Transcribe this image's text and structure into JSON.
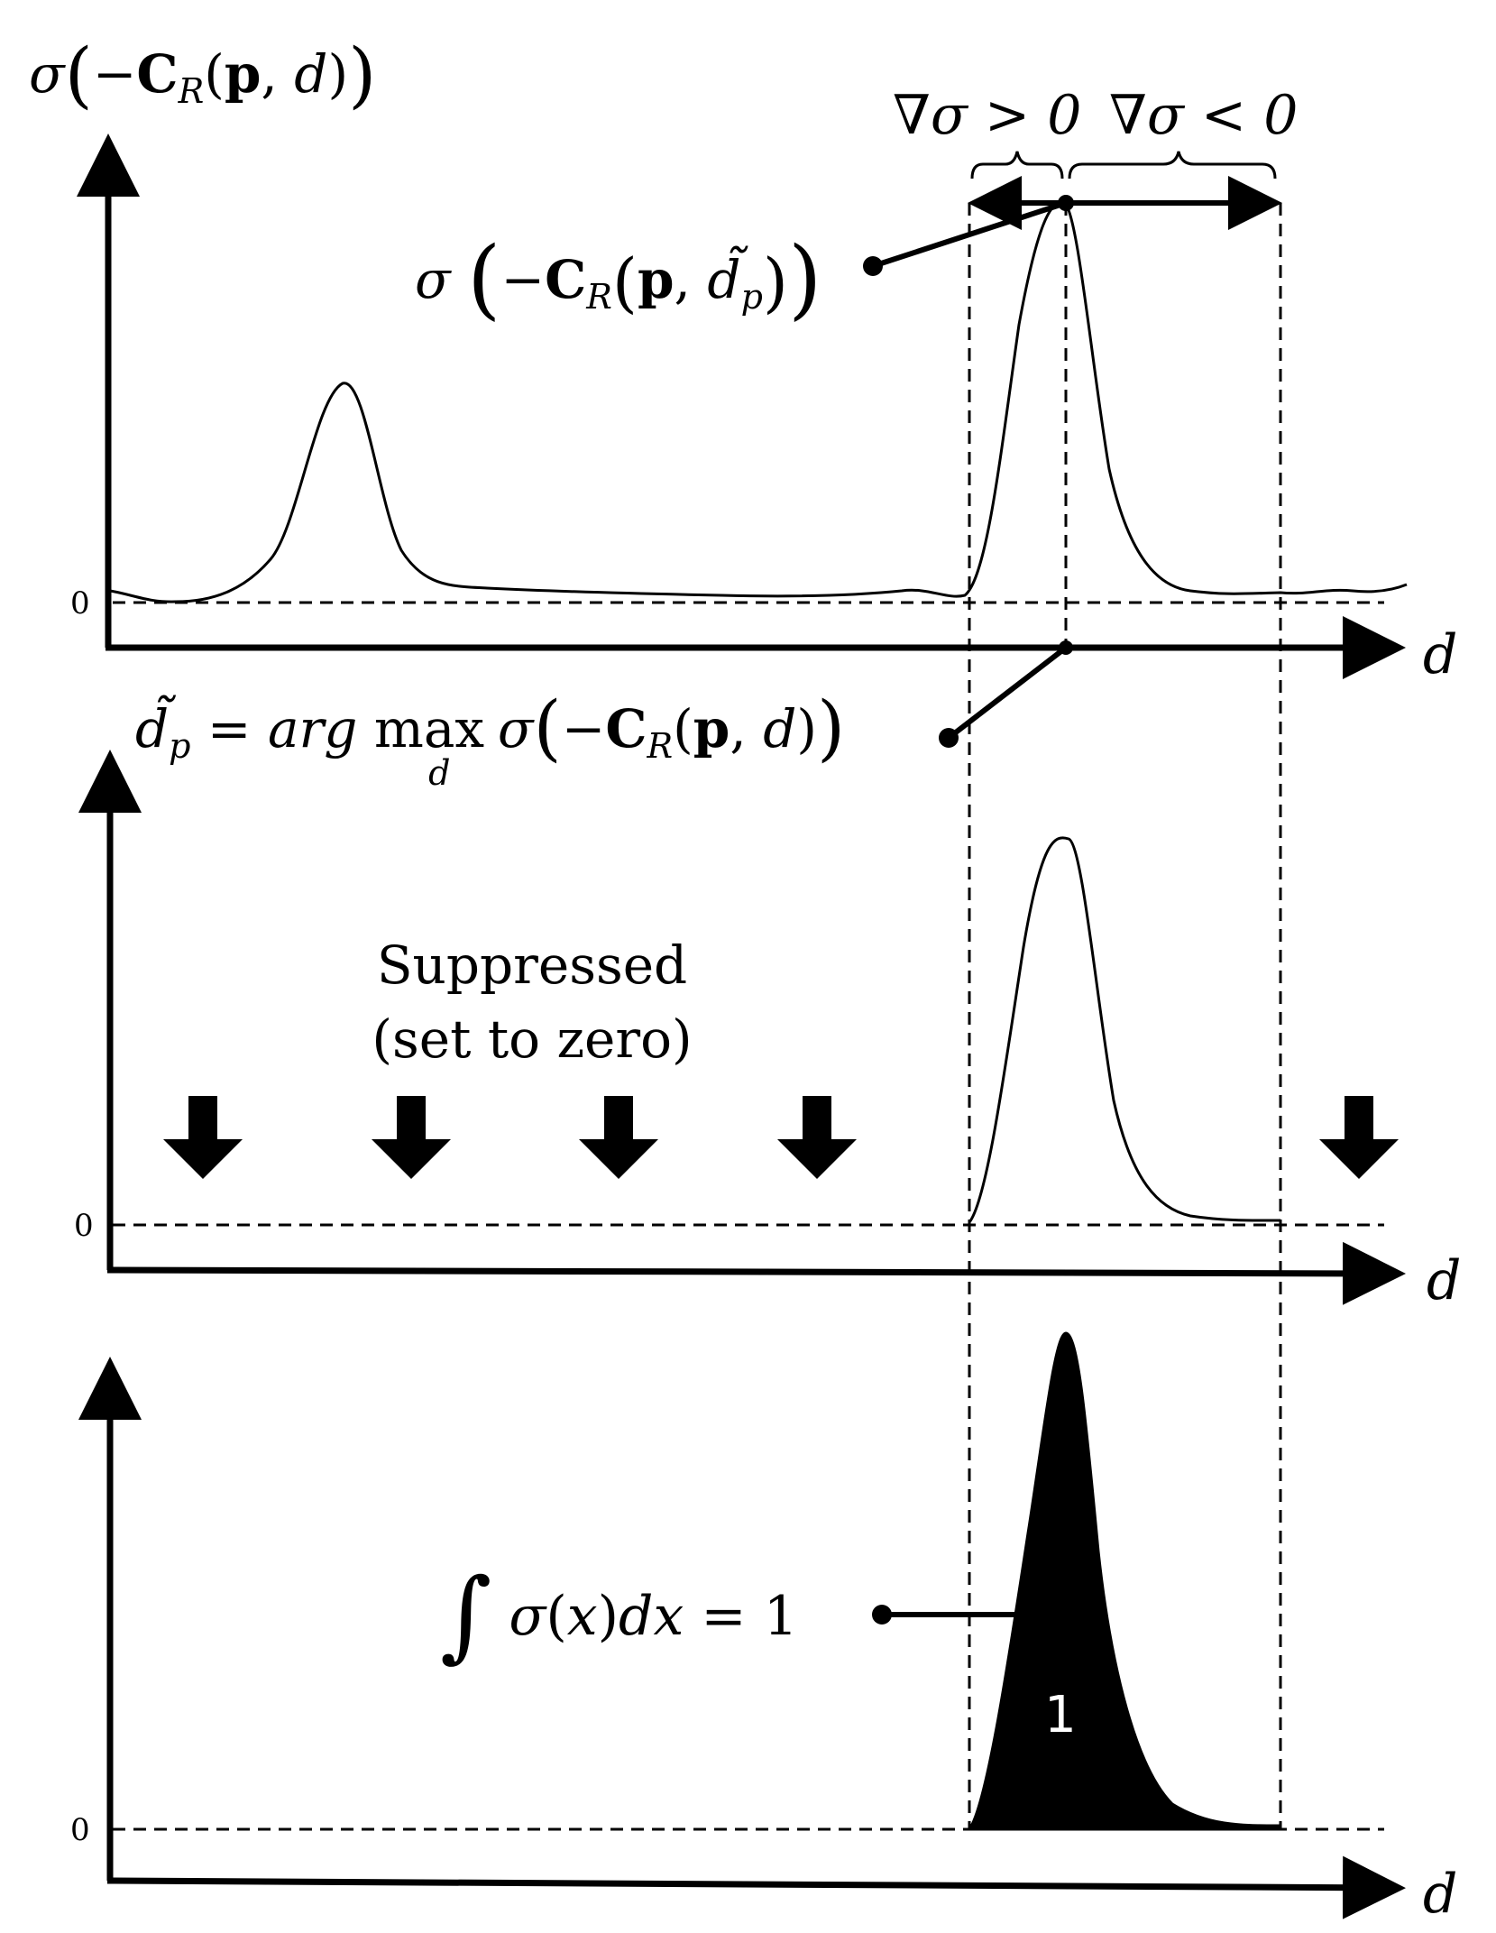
{
  "top_panel": {
    "y_axis_label": "σ(−C_R(p, d))",
    "zero_label": "0",
    "x_axis_label": "d",
    "grad_pos_label": "∇σ > 0",
    "grad_neg_label": "∇σ < 0",
    "peak_callout": "σ(−C_R(p, d̃_p))"
  },
  "argmax_callout": "d̃_p = arg max_d σ(−C_R(p, d))",
  "middle_panel": {
    "zero_label": "0",
    "x_axis_label": "d",
    "suppressed_line1": "Suppressed",
    "suppressed_line2": "(set to zero)"
  },
  "bottom_panel": {
    "zero_label": "0",
    "x_axis_label": "d",
    "integral_callout": "∫ σ(x)dx = 1",
    "area_label": "1"
  },
  "colors": {
    "ink": "#000000",
    "background": "#ffffff",
    "fill": "#000000"
  }
}
